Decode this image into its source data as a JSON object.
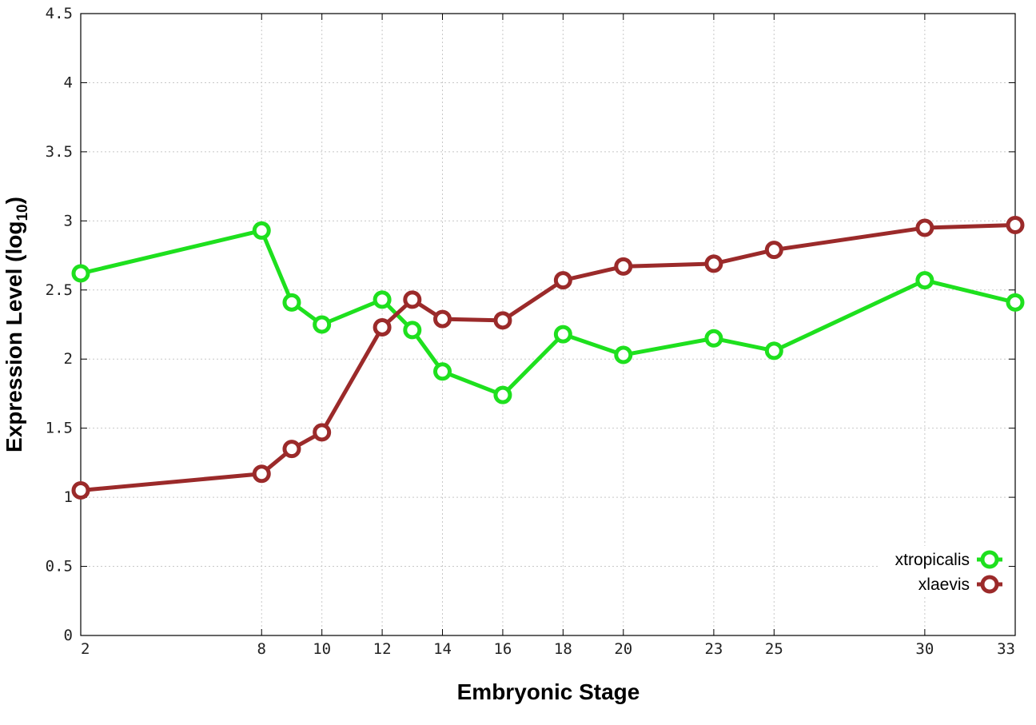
{
  "chart_data": {
    "type": "line",
    "xlabel": "Embryonic Stage",
    "ylabel": "Expression Level (log",
    "ylabel_subscript": "10",
    "ylabel_close": ")",
    "x": [
      2,
      8,
      9,
      10,
      12,
      13,
      14,
      16,
      18,
      20,
      23,
      25,
      30,
      33
    ],
    "x_ticks": [
      "2",
      "8",
      "10",
      "12",
      "14",
      "16",
      "18",
      "20",
      "23",
      "25",
      "30",
      "33"
    ],
    "y_ticks": [
      "0",
      "0.5",
      "1",
      "1.5",
      "2",
      "2.5",
      "3",
      "3.5",
      "4",
      "4.5"
    ],
    "ylim": [
      0,
      4.5
    ],
    "grid": true,
    "legend_position": "bottom-right",
    "series": [
      {
        "name": "xtropicalis",
        "color": "#1ee01e",
        "values": [
          2.62,
          2.93,
          2.41,
          2.25,
          2.43,
          2.21,
          1.91,
          1.74,
          2.18,
          2.03,
          2.15,
          2.06,
          2.57,
          2.41
        ]
      },
      {
        "name": "xlaevis",
        "color": "#9b2a2a",
        "values": [
          1.05,
          1.17,
          1.35,
          1.47,
          2.23,
          2.43,
          2.29,
          2.28,
          2.57,
          2.67,
          2.69,
          2.79,
          2.95,
          2.97
        ]
      }
    ]
  }
}
